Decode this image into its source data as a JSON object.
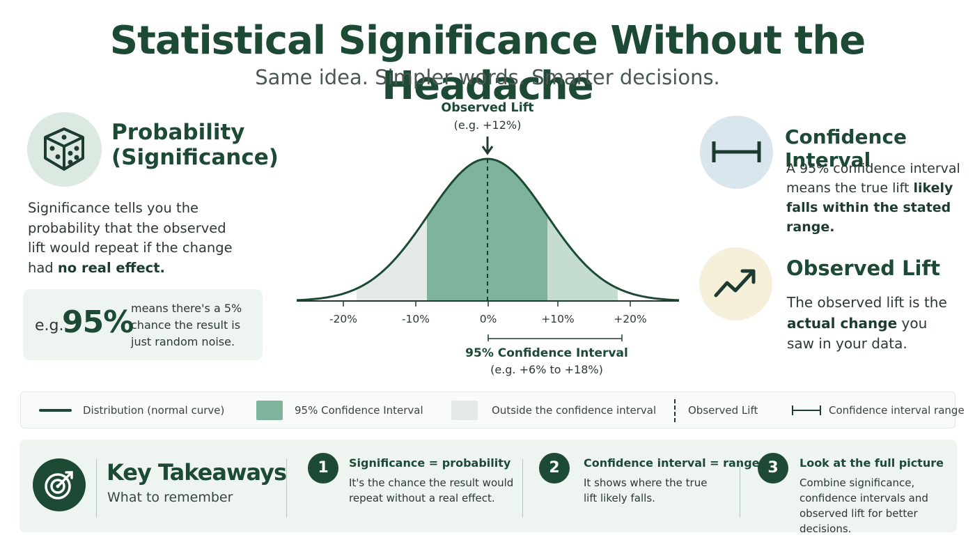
{
  "header": {
    "title": "Statistical Significance Without the Headache",
    "subtitle": "Same idea. Simpler words. Smarter decisions."
  },
  "probability": {
    "title_line1": "Probability",
    "title_line2": "(Significance)",
    "text": "Significance tells you the probability that the observed lift would repeat if the change had ",
    "text_bold": "no real effect.",
    "example": {
      "prefix": "e.g.",
      "value": "95%",
      "description": "means there's a 5% chance the result is just random noise."
    },
    "icon": "dice-icon"
  },
  "diagram": {
    "observed_lift_label": "Observed Lift",
    "observed_lift_example": "(e.g. +12%)",
    "ticks": [
      "-20%",
      "-10%",
      "0%",
      "+10%",
      "+20%"
    ],
    "ci_label": "95% Confidence Interval",
    "ci_example": "(e.g. +6% to +18%)",
    "colors": {
      "curve": "#1d4a35",
      "ci_fill": "#7fb39b",
      "outside_fill": "#e4eae6",
      "tail_right_fill": "#c5ddd0"
    }
  },
  "confidence_interval": {
    "title": "Confidence Interval",
    "text": "A 95% confidence interval means the true lift ",
    "text_bold": "likely falls within the stated range.",
    "icon": "range-bracket-icon"
  },
  "observed_lift": {
    "title": "Observed Lift",
    "text_before": "The observed lift is the ",
    "text_bold": "actual change",
    "text_after": " you saw in your data.",
    "icon": "trend-up-icon"
  },
  "legend": {
    "items": [
      {
        "label": "Distribution (normal curve)"
      },
      {
        "label": "95% Confidence Interval"
      },
      {
        "label": "Outside the confidence interval"
      },
      {
        "label": "Observed Lift"
      },
      {
        "label": "Confidence interval range"
      }
    ]
  },
  "takeaways": {
    "title": "Key Takeaways",
    "subtitle": "What to remember",
    "icon": "target-icon",
    "steps": [
      {
        "number": "1",
        "heading": "Significance = probability",
        "text": "It's the chance the result would repeat without a real effect."
      },
      {
        "number": "2",
        "heading": "Confidence interval = range",
        "text": "It shows where the true lift likely falls."
      },
      {
        "number": "3",
        "heading": "Look at the full picture",
        "text": "Combine significance, confidence intervals and observed lift for better decisions."
      }
    ]
  }
}
